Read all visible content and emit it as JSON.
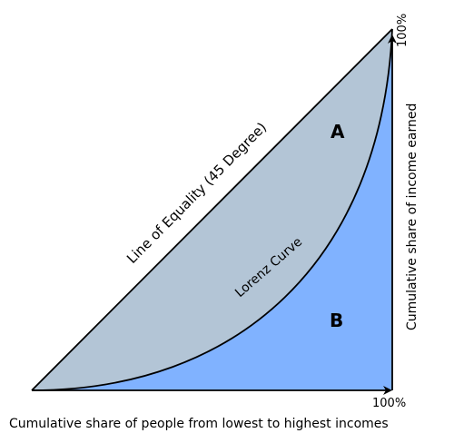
{
  "labels": {
    "equality_line": "Line of Equality (45 Degree)",
    "lorenz_curve": "Lorenz Curve",
    "region_a": "A",
    "region_b": "B",
    "x_axis": "Cumulative share of people from lowest to highest incomes",
    "y_axis": "Cumulative share of income earned",
    "x_max": "100%",
    "y_max": "100%"
  },
  "colors": {
    "region_a_fill": "#b3c5d6",
    "region_b_fill": "#80b2ff",
    "stroke": "#000000"
  }
}
